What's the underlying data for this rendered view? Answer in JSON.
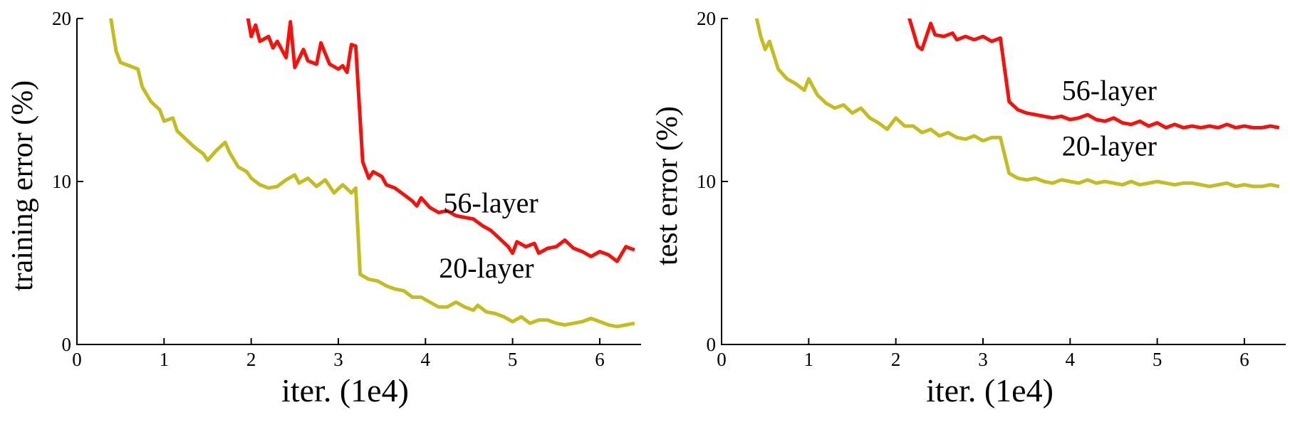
{
  "figure": {
    "background": "#ffffff",
    "axis_color": "#000000"
  },
  "chart_data": [
    {
      "type": "line",
      "title": "",
      "xlabel": "iter. (1e4)",
      "ylabel": "training error (%)",
      "xlim": [
        0,
        6.45
      ],
      "ylim": [
        0,
        20
      ],
      "xticks": [
        0,
        1,
        2,
        3,
        4,
        5,
        6
      ],
      "yticks": [
        0,
        10,
        20
      ],
      "grid": false,
      "legend_position": "inline-annotations",
      "series": [
        {
          "name": "56-layer",
          "color": "#f2130e",
          "label": {
            "text": "56-layer",
            "x": 4.75,
            "y": 8.1
          },
          "points": [
            [
              1.93,
              21
            ],
            [
              2.0,
              18.9
            ],
            [
              2.05,
              19.6
            ],
            [
              2.1,
              18.6
            ],
            [
              2.2,
              18.9
            ],
            [
              2.25,
              18.2
            ],
            [
              2.3,
              18.6
            ],
            [
              2.4,
              17.6
            ],
            [
              2.45,
              19.8
            ],
            [
              2.5,
              17.0
            ],
            [
              2.6,
              18.1
            ],
            [
              2.65,
              17.4
            ],
            [
              2.75,
              17.2
            ],
            [
              2.8,
              18.5
            ],
            [
              2.9,
              17.2
            ],
            [
              3.0,
              16.9
            ],
            [
              3.05,
              17.1
            ],
            [
              3.1,
              16.7
            ],
            [
              3.15,
              18.4
            ],
            [
              3.2,
              18.3
            ],
            [
              3.28,
              11.2
            ],
            [
              3.35,
              10.2
            ],
            [
              3.4,
              10.6
            ],
            [
              3.5,
              10.3
            ],
            [
              3.55,
              9.8
            ],
            [
              3.65,
              9.6
            ],
            [
              3.75,
              9.2
            ],
            [
              3.85,
              8.8
            ],
            [
              3.9,
              8.5
            ],
            [
              3.95,
              9.0
            ],
            [
              4.05,
              8.4
            ],
            [
              4.15,
              8.1
            ],
            [
              4.25,
              8.2
            ],
            [
              4.35,
              7.9
            ],
            [
              4.45,
              7.8
            ],
            [
              4.55,
              7.7
            ],
            [
              4.65,
              7.3
            ],
            [
              4.75,
              7.0
            ],
            [
              4.85,
              6.5
            ],
            [
              4.95,
              6.0
            ],
            [
              5.0,
              5.6
            ],
            [
              5.05,
              6.3
            ],
            [
              5.15,
              6.0
            ],
            [
              5.25,
              6.2
            ],
            [
              5.3,
              5.6
            ],
            [
              5.4,
              5.9
            ],
            [
              5.5,
              6.0
            ],
            [
              5.6,
              6.4
            ],
            [
              5.7,
              5.9
            ],
            [
              5.8,
              5.7
            ],
            [
              5.9,
              5.4
            ],
            [
              6.0,
              5.7
            ],
            [
              6.1,
              5.5
            ],
            [
              6.2,
              5.1
            ],
            [
              6.3,
              6.0
            ],
            [
              6.4,
              5.8
            ]
          ]
        },
        {
          "name": "20-layer",
          "color": "#c3bd23",
          "label": {
            "text": "20-layer",
            "x": 4.7,
            "y": 4.1
          },
          "points": [
            [
              0.36,
              21
            ],
            [
              0.45,
              18.0
            ],
            [
              0.5,
              17.3
            ],
            [
              0.6,
              17.1
            ],
            [
              0.7,
              16.9
            ],
            [
              0.75,
              15.8
            ],
            [
              0.85,
              14.9
            ],
            [
              0.95,
              14.4
            ],
            [
              1.0,
              13.7
            ],
            [
              1.1,
              13.9
            ],
            [
              1.15,
              13.1
            ],
            [
              1.25,
              12.6
            ],
            [
              1.35,
              12.1
            ],
            [
              1.45,
              11.7
            ],
            [
              1.5,
              11.3
            ],
            [
              1.6,
              11.9
            ],
            [
              1.7,
              12.4
            ],
            [
              1.75,
              11.8
            ],
            [
              1.85,
              10.9
            ],
            [
              1.95,
              10.6
            ],
            [
              2.0,
              10.2
            ],
            [
              2.1,
              9.8
            ],
            [
              2.2,
              9.6
            ],
            [
              2.3,
              9.7
            ],
            [
              2.4,
              10.1
            ],
            [
              2.5,
              10.4
            ],
            [
              2.55,
              9.9
            ],
            [
              2.65,
              10.2
            ],
            [
              2.75,
              9.7
            ],
            [
              2.85,
              10.1
            ],
            [
              2.95,
              9.3
            ],
            [
              3.05,
              9.8
            ],
            [
              3.15,
              9.3
            ],
            [
              3.2,
              9.6
            ],
            [
              3.25,
              4.3
            ],
            [
              3.35,
              4.0
            ],
            [
              3.45,
              3.9
            ],
            [
              3.55,
              3.6
            ],
            [
              3.65,
              3.4
            ],
            [
              3.75,
              3.3
            ],
            [
              3.85,
              2.9
            ],
            [
              3.95,
              2.9
            ],
            [
              4.05,
              2.6
            ],
            [
              4.15,
              2.3
            ],
            [
              4.25,
              2.3
            ],
            [
              4.35,
              2.6
            ],
            [
              4.45,
              2.3
            ],
            [
              4.55,
              2.1
            ],
            [
              4.6,
              2.4
            ],
            [
              4.7,
              2.0
            ],
            [
              4.8,
              1.9
            ],
            [
              4.9,
              1.7
            ],
            [
              5.0,
              1.4
            ],
            [
              5.1,
              1.7
            ],
            [
              5.2,
              1.3
            ],
            [
              5.3,
              1.5
            ],
            [
              5.4,
              1.5
            ],
            [
              5.5,
              1.3
            ],
            [
              5.6,
              1.2
            ],
            [
              5.7,
              1.3
            ],
            [
              5.8,
              1.4
            ],
            [
              5.9,
              1.6
            ],
            [
              6.0,
              1.4
            ],
            [
              6.1,
              1.2
            ],
            [
              6.2,
              1.1
            ],
            [
              6.3,
              1.2
            ],
            [
              6.4,
              1.3
            ]
          ]
        }
      ]
    },
    {
      "type": "line",
      "title": "",
      "xlabel": "iter. (1e4)",
      "ylabel": "test error (%)",
      "xlim": [
        0,
        6.45
      ],
      "ylim": [
        0,
        20
      ],
      "xticks": [
        0,
        1,
        2,
        3,
        4,
        5,
        6
      ],
      "yticks": [
        0,
        10,
        20
      ],
      "grid": false,
      "legend_position": "inline-annotations",
      "series": [
        {
          "name": "56-layer",
          "color": "#f2130e",
          "label": {
            "text": "56-layer",
            "x": 4.45,
            "y": 15.0
          },
          "points": [
            [
              2.1,
              21
            ],
            [
              2.2,
              19.2
            ],
            [
              2.25,
              18.3
            ],
            [
              2.3,
              18.1
            ],
            [
              2.4,
              19.7
            ],
            [
              2.45,
              19.0
            ],
            [
              2.55,
              18.9
            ],
            [
              2.65,
              19.1
            ],
            [
              2.7,
              18.7
            ],
            [
              2.8,
              18.9
            ],
            [
              2.9,
              18.7
            ],
            [
              3.0,
              18.9
            ],
            [
              3.1,
              18.6
            ],
            [
              3.2,
              18.8
            ],
            [
              3.3,
              14.9
            ],
            [
              3.4,
              14.4
            ],
            [
              3.5,
              14.2
            ],
            [
              3.6,
              14.1
            ],
            [
              3.7,
              14.0
            ],
            [
              3.8,
              13.9
            ],
            [
              3.9,
              14.0
            ],
            [
              4.0,
              13.8
            ],
            [
              4.1,
              13.9
            ],
            [
              4.2,
              14.1
            ],
            [
              4.3,
              13.8
            ],
            [
              4.4,
              13.7
            ],
            [
              4.5,
              13.9
            ],
            [
              4.6,
              13.6
            ],
            [
              4.7,
              13.5
            ],
            [
              4.8,
              13.7
            ],
            [
              4.9,
              13.4
            ],
            [
              5.0,
              13.6
            ],
            [
              5.1,
              13.3
            ],
            [
              5.2,
              13.5
            ],
            [
              5.3,
              13.3
            ],
            [
              5.4,
              13.4
            ],
            [
              5.5,
              13.3
            ],
            [
              5.6,
              13.4
            ],
            [
              5.7,
              13.3
            ],
            [
              5.8,
              13.5
            ],
            [
              5.9,
              13.3
            ],
            [
              6.0,
              13.4
            ],
            [
              6.1,
              13.3
            ],
            [
              6.2,
              13.3
            ],
            [
              6.3,
              13.4
            ],
            [
              6.4,
              13.3
            ]
          ]
        },
        {
          "name": "20-layer",
          "color": "#c3bd23",
          "label": {
            "text": "20-layer",
            "x": 4.45,
            "y": 11.6
          },
          "points": [
            [
              0.36,
              21
            ],
            [
              0.45,
              18.9
            ],
            [
              0.5,
              18.1
            ],
            [
              0.55,
              18.6
            ],
            [
              0.65,
              16.9
            ],
            [
              0.75,
              16.3
            ],
            [
              0.85,
              16.0
            ],
            [
              0.95,
              15.6
            ],
            [
              1.0,
              16.3
            ],
            [
              1.1,
              15.3
            ],
            [
              1.2,
              14.8
            ],
            [
              1.3,
              14.5
            ],
            [
              1.4,
              14.7
            ],
            [
              1.5,
              14.2
            ],
            [
              1.6,
              14.5
            ],
            [
              1.7,
              13.9
            ],
            [
              1.8,
              13.6
            ],
            [
              1.9,
              13.2
            ],
            [
              2.0,
              13.9
            ],
            [
              2.1,
              13.4
            ],
            [
              2.2,
              13.4
            ],
            [
              2.3,
              13.0
            ],
            [
              2.4,
              13.2
            ],
            [
              2.5,
              12.8
            ],
            [
              2.6,
              13.0
            ],
            [
              2.7,
              12.7
            ],
            [
              2.8,
              12.6
            ],
            [
              2.9,
              12.8
            ],
            [
              3.0,
              12.5
            ],
            [
              3.1,
              12.7
            ],
            [
              3.2,
              12.7
            ],
            [
              3.3,
              10.5
            ],
            [
              3.4,
              10.2
            ],
            [
              3.5,
              10.1
            ],
            [
              3.6,
              10.2
            ],
            [
              3.7,
              10.0
            ],
            [
              3.8,
              9.9
            ],
            [
              3.9,
              10.1
            ],
            [
              4.0,
              10.0
            ],
            [
              4.1,
              9.9
            ],
            [
              4.2,
              10.1
            ],
            [
              4.3,
              9.9
            ],
            [
              4.4,
              10.0
            ],
            [
              4.5,
              9.9
            ],
            [
              4.6,
              9.8
            ],
            [
              4.7,
              10.0
            ],
            [
              4.8,
              9.8
            ],
            [
              4.9,
              9.9
            ],
            [
              5.0,
              10.0
            ],
            [
              5.1,
              9.9
            ],
            [
              5.2,
              9.8
            ],
            [
              5.3,
              9.9
            ],
            [
              5.4,
              9.9
            ],
            [
              5.5,
              9.8
            ],
            [
              5.6,
              9.7
            ],
            [
              5.7,
              9.8
            ],
            [
              5.8,
              9.9
            ],
            [
              5.9,
              9.7
            ],
            [
              6.0,
              9.8
            ],
            [
              6.1,
              9.7
            ],
            [
              6.2,
              9.7
            ],
            [
              6.3,
              9.8
            ],
            [
              6.4,
              9.7
            ]
          ]
        }
      ]
    }
  ]
}
